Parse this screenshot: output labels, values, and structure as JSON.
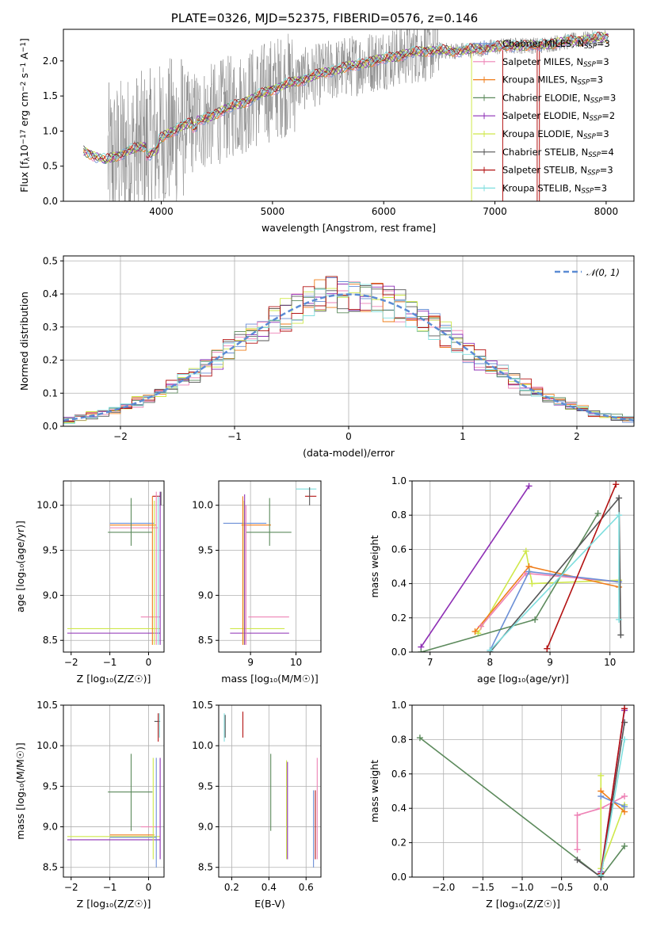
{
  "figure_title": "PLATE=0326, MJD=52375, FIBERID=0576, z=0.146",
  "colors": {
    "Chabrier MILES": "#6b8fd6",
    "Salpeter MILES": "#ee82b5",
    "Kroupa MILES": "#ef7d1a",
    "Chabrier ELODIE": "#5c8a5c",
    "Salpeter ELODIE": "#8e2fb5",
    "Kroupa ELODIE": "#cfe84a",
    "Chabrier STELIB": "#555555",
    "Salpeter STELIB": "#b31212",
    "Kroupa STELIB": "#7fdede",
    "data": "#808080",
    "normal": "#5b8bd4"
  },
  "chart_data": [
    {
      "id": "spectrum",
      "type": "line",
      "title": "PLATE=0326, MJD=52375, FIBERID=0576, z=0.146",
      "xlabel": "wavelength [Angstrom, rest frame]",
      "ylabel_parts": {
        "a": "Flux [f",
        "b": "λ",
        "c": "10",
        "d": "−17",
        "e": " erg cm",
        "f": "−2",
        "g": " s",
        "h": "−1",
        "i": " A",
        "j": "−1",
        "k": "]"
      },
      "xlim": [
        3120,
        8250
      ],
      "ylim": [
        0,
        2.45
      ],
      "xticks": [
        4000,
        5000,
        6000,
        7000,
        8000
      ],
      "yticks": [
        0.0,
        0.5,
        1.0,
        1.5,
        2.0
      ],
      "continuum": [
        [
          3300,
          0.72
        ],
        [
          3500,
          0.58
        ],
        [
          3700,
          0.72
        ],
        [
          3900,
          0.8
        ],
        [
          4000,
          0.9
        ],
        [
          4100,
          0.99
        ],
        [
          4200,
          1.09
        ],
        [
          4400,
          1.18
        ],
        [
          4600,
          1.33
        ],
        [
          4800,
          1.45
        ],
        [
          5000,
          1.6
        ],
        [
          5200,
          1.7
        ],
        [
          5500,
          1.85
        ],
        [
          5800,
          1.96
        ],
        [
          6000,
          2.03
        ],
        [
          6200,
          2.1
        ],
        [
          6400,
          2.15
        ],
        [
          6600,
          2.14
        ],
        [
          6800,
          2.16
        ],
        [
          7000,
          2.2
        ],
        [
          7200,
          2.22
        ],
        [
          7400,
          2.22
        ],
        [
          7600,
          2.27
        ],
        [
          7800,
          2.3
        ],
        [
          8000,
          2.34
        ]
      ],
      "series_names": [
        "Chabrier MILES",
        "Salpeter MILES",
        "Kroupa MILES",
        "Chabrier ELODIE",
        "Salpeter ELODIE",
        "Kroupa ELODIE",
        "Chabrier STELIB",
        "Salpeter STELIB",
        "Kroupa STELIB"
      ],
      "legend": [
        {
          "base": "Chabrier MILES, N",
          "sub": "SSP",
          "tail": "=3"
        },
        {
          "base": "Salpeter MILES, N",
          "sub": "SSP",
          "tail": "=3"
        },
        {
          "base": "Kroupa MILES, N",
          "sub": "SSP",
          "tail": "=3"
        },
        {
          "base": "Chabrier ELODIE, N",
          "sub": "SSP",
          "tail": "=3"
        },
        {
          "base": "Salpeter ELODIE, N",
          "sub": "SSP",
          "tail": "=2"
        },
        {
          "base": "Kroupa ELODIE, N",
          "sub": "SSP",
          "tail": "=3"
        },
        {
          "base": "Chabrier STELIB, N",
          "sub": "SSP",
          "tail": "=4"
        },
        {
          "base": "Salpeter STELIB, N",
          "sub": "SSP",
          "tail": "=3"
        },
        {
          "base": "Kroupa STELIB, N",
          "sub": "SSP",
          "tail": "=3"
        }
      ],
      "legend_position": "top-right",
      "grid": false
    },
    {
      "id": "residual-hist",
      "type": "line",
      "xlabel": "(data-model)/error",
      "ylabel": "Normed distribution",
      "xlim": [
        -2.5,
        2.5
      ],
      "ylim": [
        0,
        0.515
      ],
      "xticks": [
        -2,
        -1,
        0,
        1,
        2
      ],
      "yticks": [
        0.0,
        0.1,
        0.2,
        0.3,
        0.4,
        0.5
      ],
      "bin_width": 0.1,
      "legend": "𝒩(0, 1)",
      "legend_position": "top-right",
      "grid": true
    },
    {
      "id": "age-vs-z",
      "type": "scatter",
      "xlabel": "Z [log₁₀(Z/Z☉)]",
      "ylabel": "age  [log₁₀(age/yr)]",
      "xlim": [
        -2.2,
        0.4
      ],
      "ylim": [
        8.37,
        10.27
      ],
      "xticks": [
        -2,
        -1,
        0
      ],
      "yticks": [
        8.5,
        9.0,
        9.5,
        10.0
      ],
      "segments_x": [
        [
          -1.0,
          0.15,
          9.8,
          "Chabrier MILES"
        ],
        [
          -1.0,
          0.2,
          9.78,
          "Kroupa MILES"
        ],
        [
          -1.0,
          0.25,
          9.75,
          "Salpeter MILES"
        ],
        [
          -1.05,
          0.1,
          9.7,
          "Chabrier ELODIE"
        ],
        [
          -0.2,
          0.3,
          8.76,
          "Salpeter MILES"
        ],
        [
          -2.1,
          0.3,
          8.63,
          "Kroupa ELODIE"
        ],
        [
          -2.1,
          0.3,
          8.58,
          "Salpeter ELODIE"
        ],
        [
          0.1,
          0.3,
          10.1,
          "Salpeter STELIB"
        ]
      ],
      "segments_y": [
        [
          -0.45,
          9.55,
          10.08,
          "Chabrier ELODIE"
        ],
        [
          0.1,
          8.45,
          10.1,
          "Kroupa MILES"
        ],
        [
          0.15,
          8.45,
          10.05,
          "Kroupa ELODIE"
        ],
        [
          0.2,
          8.45,
          10.15,
          "Salpeter MILES"
        ],
        [
          0.25,
          8.45,
          10.1,
          "Kroupa STELIB"
        ],
        [
          0.3,
          8.45,
          10.15,
          "Salpeter ELODIE"
        ],
        [
          0.32,
          10.0,
          10.15,
          "Chabrier STELIB"
        ]
      ],
      "grid": true
    },
    {
      "id": "age-vs-mass",
      "type": "scatter",
      "xlabel": "mass [log₁₀(M/M☉)]",
      "ylabel": "",
      "xlim": [
        8.3,
        10.55
      ],
      "ylim": [
        8.37,
        10.27
      ],
      "xticks": [
        9,
        10
      ],
      "yticks": [
        8.5,
        9.0,
        9.5,
        10.0
      ],
      "segments_x": [
        [
          8.4,
          9.35,
          9.8,
          "Chabrier MILES"
        ],
        [
          8.8,
          9.45,
          9.78,
          "Kroupa MILES"
        ],
        [
          8.9,
          9.9,
          9.7,
          "Chabrier ELODIE"
        ],
        [
          8.95,
          9.85,
          8.76,
          "Salpeter MILES"
        ],
        [
          8.55,
          9.75,
          8.63,
          "Kroupa ELODIE"
        ],
        [
          8.55,
          9.85,
          8.58,
          "Salpeter ELODIE"
        ],
        [
          10.0,
          10.45,
          10.18,
          "Kroupa STELIB"
        ],
        [
          10.2,
          10.45,
          10.1,
          "Salpeter STELIB"
        ]
      ],
      "segments_y": [
        [
          8.83,
          8.45,
          10.1,
          "Kroupa MILES"
        ],
        [
          8.86,
          8.45,
          10.05,
          "Kroupa ELODIE"
        ],
        [
          8.87,
          8.45,
          10.12,
          "Salpeter ELODIE"
        ],
        [
          8.9,
          8.45,
          10.0,
          "Salpeter MILES"
        ],
        [
          9.42,
          9.55,
          10.08,
          "Chabrier ELODIE"
        ],
        [
          10.3,
          10.0,
          10.2,
          "Chabrier STELIB"
        ]
      ],
      "grid": true
    },
    {
      "id": "mass-weight-vs-age",
      "type": "line",
      "xlabel": "age  [log₁₀(age/yr)]",
      "ylabel": "mass weight",
      "xlim": [
        6.7,
        10.4
      ],
      "ylim": [
        0,
        1
      ],
      "xticks": [
        7,
        8,
        9,
        10
      ],
      "yticks": [
        0.0,
        0.2,
        0.4,
        0.6,
        0.8,
        1.0
      ],
      "series": [
        {
          "name": "Salpeter ELODIE",
          "points": [
            [
              6.85,
              0.03
            ],
            [
              8.65,
              0.97
            ]
          ]
        },
        {
          "name": "Kroupa ELODIE",
          "points": [
            [
              7.8,
              0.11
            ],
            [
              8.6,
              0.59
            ],
            [
              8.7,
              0.4
            ],
            [
              10.15,
              0.42
            ]
          ]
        },
        {
          "name": "Kroupa MILES",
          "points": [
            [
              7.75,
              0.12
            ],
            [
              8.65,
              0.5
            ],
            [
              10.15,
              0.38
            ]
          ]
        },
        {
          "name": "Salpeter MILES",
          "points": [
            [
              7.85,
              0.15
            ],
            [
              8.6,
              0.46
            ],
            [
              10.15,
              0.41
            ]
          ]
        },
        {
          "name": "Chabrier MILES",
          "points": [
            [
              8.0,
              0.01
            ],
            [
              8.65,
              0.47
            ],
            [
              10.15,
              0.41
            ]
          ]
        },
        {
          "name": "Chabrier ELODIE",
          "points": [
            [
              6.85,
              0.0
            ],
            [
              8.75,
              0.19
            ],
            [
              9.8,
              0.81
            ]
          ]
        },
        {
          "name": "Chabrier STELIB",
          "points": [
            [
              8.0,
              0.0
            ],
            [
              10.15,
              0.9
            ],
            [
              10.18,
              0.1
            ]
          ]
        },
        {
          "name": "Salpeter STELIB",
          "points": [
            [
              8.95,
              0.02
            ],
            [
              10.1,
              0.98
            ]
          ]
        },
        {
          "name": "Kroupa STELIB",
          "points": [
            [
              8.0,
              0.01
            ],
            [
              10.15,
              0.8
            ],
            [
              10.15,
              0.19
            ]
          ]
        }
      ],
      "grid": true
    },
    {
      "id": "mass-vs-z",
      "type": "scatter",
      "xlabel": "Z [log₁₀(Z/Z☉)]",
      "ylabel": "mass [log₁₀(M/M☉)]",
      "xlim": [
        -2.2,
        0.4
      ],
      "ylim": [
        8.38,
        10.5
      ],
      "xticks": [
        -2,
        -1,
        0
      ],
      "yticks": [
        8.5,
        9.0,
        9.5,
        10.0,
        10.5
      ],
      "segments_x": [
        [
          -1.05,
          0.1,
          9.43,
          "Chabrier ELODIE"
        ],
        [
          -1.0,
          0.15,
          8.9,
          "Kroupa MILES"
        ],
        [
          -2.1,
          0.3,
          8.88,
          "Kroupa ELODIE"
        ],
        [
          -1.0,
          0.2,
          8.87,
          "Chabrier MILES"
        ],
        [
          -2.1,
          0.3,
          8.84,
          "Salpeter ELODIE"
        ],
        [
          -0.2,
          0.3,
          9.0,
          "Salpeter MILES"
        ],
        [
          0.15,
          0.3,
          10.3,
          "Chabrier STELIB"
        ]
      ],
      "segments_y": [
        [
          -0.45,
          8.95,
          9.9,
          "Chabrier ELODIE"
        ],
        [
          0.12,
          8.6,
          9.85,
          "Kroupa ELODIE"
        ],
        [
          0.2,
          8.5,
          9.85,
          "Chabrier MILES"
        ],
        [
          0.25,
          10.05,
          10.4,
          "Salpeter STELIB"
        ],
        [
          0.28,
          10.1,
          10.4,
          "Kroupa STELIB"
        ],
        [
          0.3,
          8.6,
          9.85,
          "Salpeter ELODIE"
        ]
      ],
      "grid": true
    },
    {
      "id": "mass-vs-ebv",
      "type": "scatter",
      "xlabel": "E(B-V)",
      "ylabel": "",
      "xlim": [
        0.13,
        0.68
      ],
      "ylim": [
        8.38,
        10.5
      ],
      "xticks": [
        0.2,
        0.4,
        0.6
      ],
      "yticks": [
        8.5,
        9.0,
        9.5,
        10.0,
        10.5
      ],
      "segments_y": [
        [
          0.16,
          10.05,
          10.4,
          "Kroupa STELIB"
        ],
        [
          0.165,
          10.1,
          10.38,
          "Chabrier STELIB"
        ],
        [
          0.26,
          10.1,
          10.42,
          "Salpeter STELIB"
        ],
        [
          0.41,
          8.95,
          9.9,
          "Chabrier ELODIE"
        ],
        [
          0.495,
          8.6,
          9.82,
          "Kroupa ELODIE"
        ],
        [
          0.5,
          8.6,
          9.8,
          "Salpeter ELODIE"
        ],
        [
          0.64,
          8.5,
          9.45,
          "Chabrier MILES"
        ],
        [
          0.65,
          8.6,
          9.45,
          "Salpeter STELIB"
        ],
        [
          0.66,
          8.6,
          9.85,
          "Salpeter MILES"
        ]
      ],
      "grid": true
    },
    {
      "id": "mass-weight-vs-z",
      "type": "line",
      "xlabel": "Z [log₁₀(Z/Z☉)]",
      "ylabel": "mass weight",
      "xlim": [
        -2.4,
        0.42
      ],
      "ylim": [
        0,
        1
      ],
      "xticks": [
        -2.0,
        -1.5,
        -1.0,
        -0.5,
        0.0
      ],
      "yticks": [
        0.0,
        0.2,
        0.4,
        0.6,
        0.8,
        1.0
      ],
      "series": [
        {
          "name": "Chabrier ELODIE",
          "points": [
            [
              -2.3,
              0.81
            ],
            [
              0.0,
              0.0
            ],
            [
              0.3,
              0.18
            ]
          ]
        },
        {
          "name": "Chabrier STELIB",
          "points": [
            [
              -0.3,
              0.1
            ],
            [
              0.0,
              0.0
            ],
            [
              0.3,
              0.9
            ]
          ]
        },
        {
          "name": "Salpeter MILES",
          "points": [
            [
              -0.3,
              0.16
            ],
            [
              -0.3,
              0.36
            ],
            [
              0.0,
              0.4
            ],
            [
              0.3,
              0.47
            ]
          ]
        },
        {
          "name": "Kroupa ELODIE",
          "points": [
            [
              0.0,
              0.59
            ],
            [
              0.0,
              0.05
            ],
            [
              0.3,
              0.42
            ]
          ]
        },
        {
          "name": "Kroupa MILES",
          "points": [
            [
              0.0,
              0.5
            ],
            [
              0.3,
              0.38
            ]
          ]
        },
        {
          "name": "Chabrier MILES",
          "points": [
            [
              0.0,
              0.47
            ],
            [
              0.3,
              0.41
            ]
          ]
        },
        {
          "name": "Salpeter ELODIE",
          "points": [
            [
              0.0,
              0.03
            ],
            [
              0.3,
              0.97
            ]
          ]
        },
        {
          "name": "Salpeter STELIB",
          "points": [
            [
              0.0,
              0.02
            ],
            [
              0.3,
              0.98
            ]
          ]
        },
        {
          "name": "Kroupa STELIB",
          "points": [
            [
              0.0,
              0.01
            ],
            [
              0.3,
              0.8
            ]
          ]
        }
      ],
      "grid": true
    }
  ]
}
